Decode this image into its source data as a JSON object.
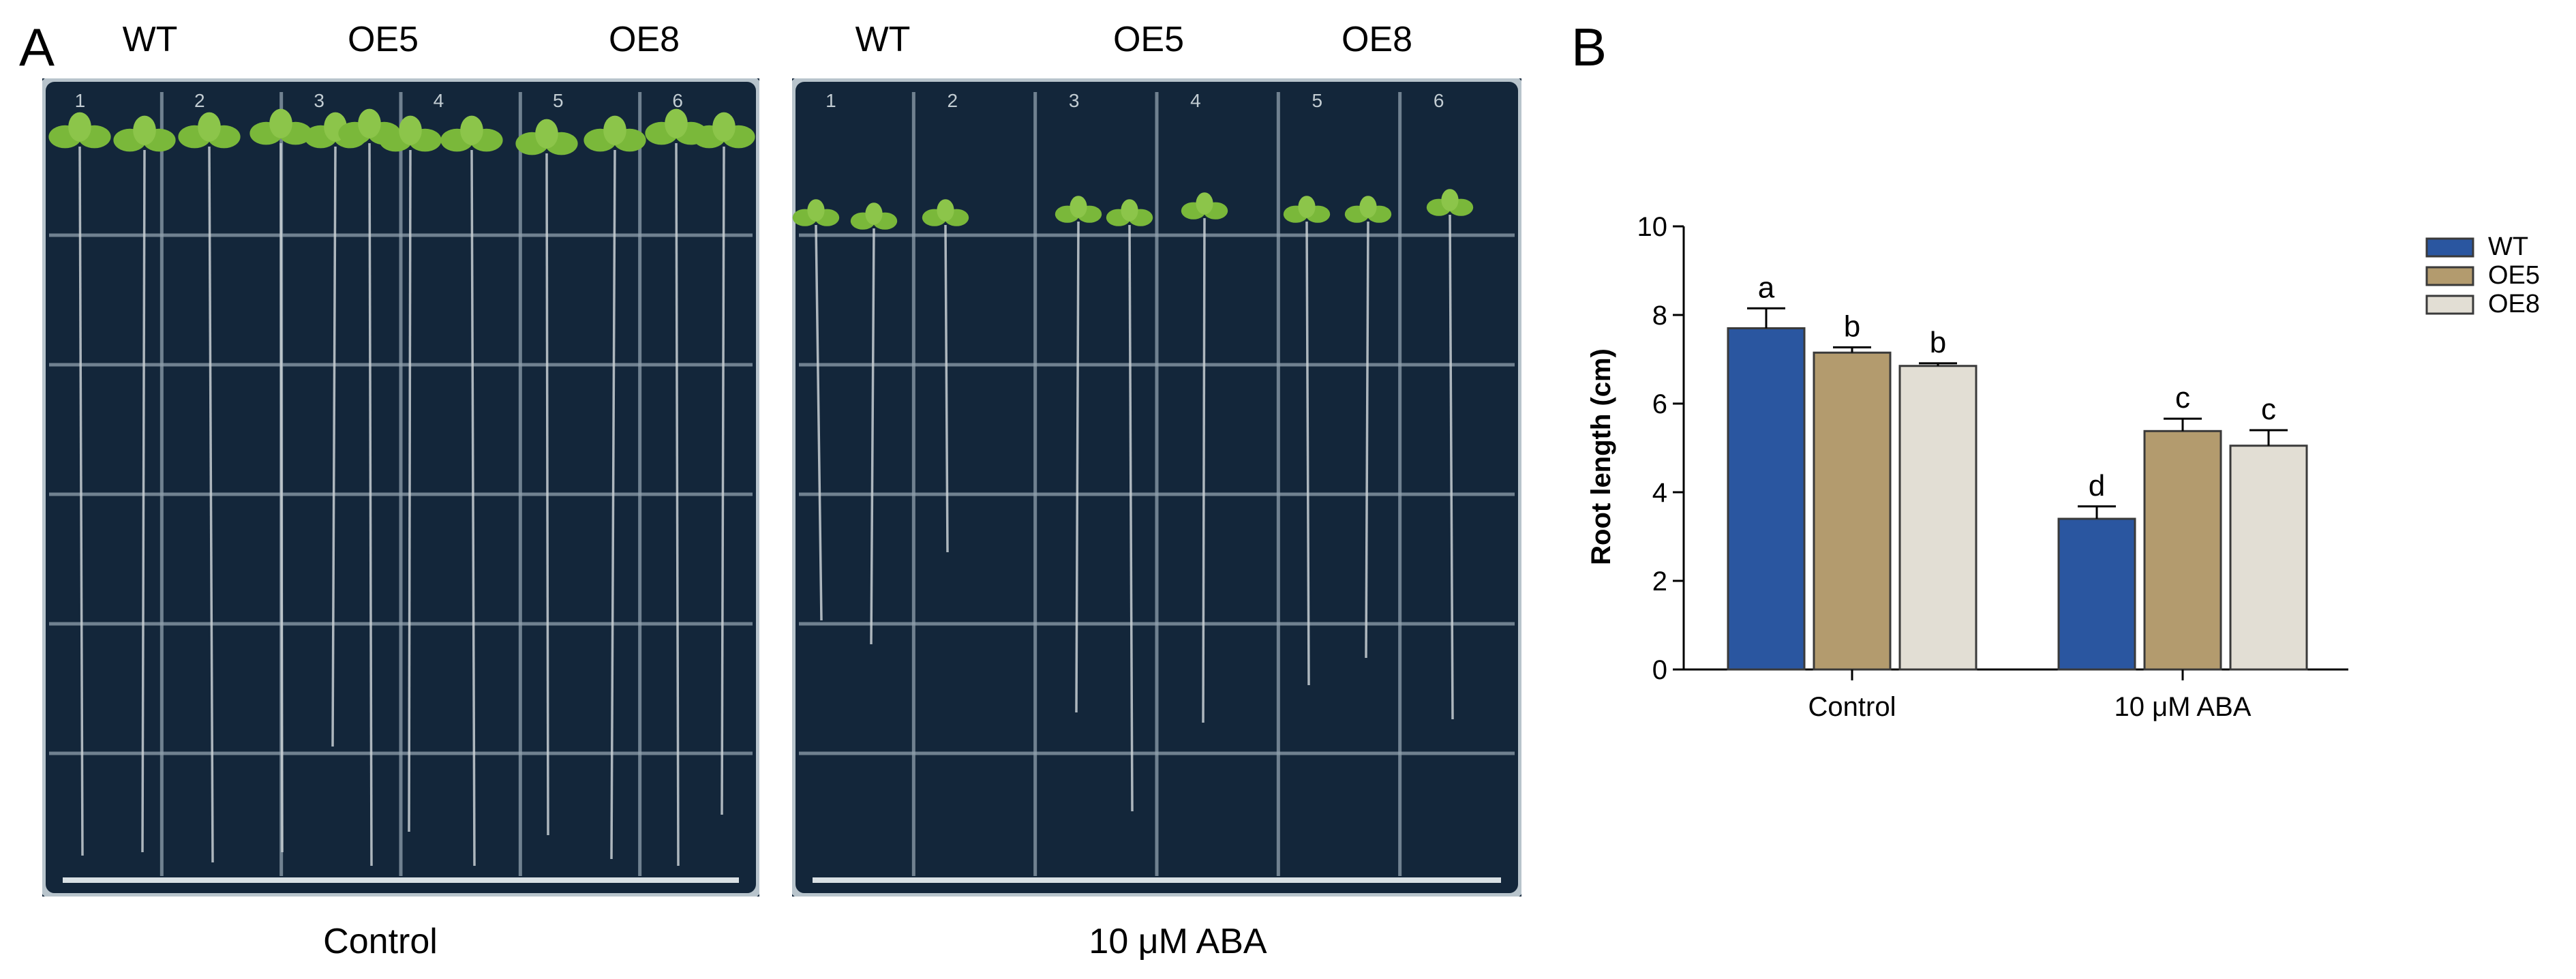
{
  "panels": {
    "a_label": "A",
    "b_label": "B"
  },
  "plates": [
    {
      "caption": "Control",
      "genotypes": [
        "WT",
        "OE5",
        "OE8"
      ],
      "column_numbers": [
        "1",
        "2",
        "3",
        "4",
        "5",
        "6"
      ]
    },
    {
      "caption": "10 μM ABA",
      "genotypes": [
        "WT",
        "OE5",
        "OE8"
      ],
      "column_numbers": [
        "1",
        "2",
        "3",
        "4",
        "5",
        "6"
      ]
    }
  ],
  "colors": {
    "plate_bg": "#13263a",
    "grid": "#8fa0ad",
    "seedling": "#7ab83a",
    "root": "#c9d0d4",
    "wt": "#2a56a0",
    "oe5": "#b39b6e",
    "oe8": "#e2ded4"
  },
  "chart_data": {
    "type": "bar",
    "categories": [
      "Control",
      "10 μM ABA"
    ],
    "series": [
      {
        "name": "WT",
        "values": [
          7.7,
          3.4
        ],
        "errors": [
          0.45,
          0.28
        ],
        "letters": [
          "a",
          "d"
        ]
      },
      {
        "name": "OE5",
        "values": [
          7.15,
          5.38
        ],
        "errors": [
          0.12,
          0.28
        ],
        "letters": [
          "b",
          "c"
        ]
      },
      {
        "name": "OE8",
        "values": [
          6.85,
          5.05
        ],
        "errors": [
          0.06,
          0.35
        ],
        "letters": [
          "b",
          "c"
        ]
      }
    ],
    "ylabel": "Root length (cm)",
    "xlabel": "",
    "ylim": [
      0,
      10
    ],
    "yticks": [
      0,
      2,
      4,
      6,
      8,
      10
    ],
    "legend_position": "right"
  }
}
